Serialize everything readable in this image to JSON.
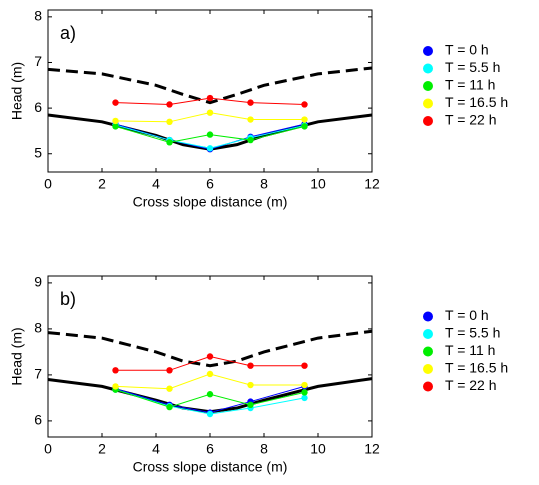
{
  "chart_data": [
    {
      "type": "line",
      "annotation": "a)",
      "xlabel": "Cross slope distance (m)",
      "ylabel": "Head (m)",
      "xlim": [
        0,
        12
      ],
      "xticks": [
        0,
        2,
        4,
        6,
        8,
        10,
        12
      ],
      "ylim": [
        4.6,
        8.15
      ],
      "yticks": [
        5,
        6,
        7,
        8
      ],
      "x": [
        2.5,
        4.5,
        6,
        7.5,
        9.5
      ],
      "series": [
        {
          "name": "T = 0 h",
          "color": "#0000ff",
          "values": [
            5.65,
            5.3,
            5.1,
            5.37,
            5.65
          ]
        },
        {
          "name": "T = 5.5 h",
          "color": "#00ffff",
          "values": [
            5.63,
            5.3,
            5.12,
            5.35,
            5.62
          ]
        },
        {
          "name": "T = 11 h",
          "color": "#00ee00",
          "values": [
            5.6,
            5.25,
            5.42,
            5.3,
            5.6
          ]
        },
        {
          "name": "T = 16.5 h",
          "color": "#ffff00",
          "values": [
            5.72,
            5.7,
            5.9,
            5.75,
            5.75
          ]
        },
        {
          "name": "T = 22 h",
          "color": "#ff0000",
          "values": [
            6.12,
            6.08,
            6.22,
            6.12,
            6.08
          ]
        }
      ],
      "lines": [
        {
          "style": "solid",
          "color": "#000000",
          "x": [
            0,
            2,
            4,
            5,
            6,
            7,
            8,
            10,
            12
          ],
          "values": [
            5.85,
            5.7,
            5.4,
            5.2,
            5.1,
            5.2,
            5.4,
            5.7,
            5.85
          ]
        },
        {
          "style": "dashed",
          "color": "#000000",
          "x": [
            0,
            2,
            4,
            5,
            6,
            7,
            8,
            10,
            12
          ],
          "values": [
            6.85,
            6.75,
            6.5,
            6.3,
            6.12,
            6.3,
            6.5,
            6.75,
            6.88
          ]
        }
      ]
    },
    {
      "type": "line",
      "annotation": "b)",
      "xlabel": "Cross slope distance (m)",
      "ylabel": "Head (m)",
      "xlim": [
        0,
        12
      ],
      "xticks": [
        0,
        2,
        4,
        6,
        8,
        10,
        12
      ],
      "ylim": [
        5.65,
        9.15
      ],
      "yticks": [
        6,
        7,
        8,
        9
      ],
      "x": [
        2.5,
        4.5,
        6,
        7.5,
        9.5
      ],
      "series": [
        {
          "name": "T = 0 h",
          "color": "#0000ff",
          "values": [
            6.7,
            6.35,
            6.18,
            6.42,
            6.75
          ]
        },
        {
          "name": "T = 5.5 h",
          "color": "#00ffff",
          "values": [
            6.68,
            6.32,
            6.15,
            6.28,
            6.5
          ]
        },
        {
          "name": "T = 11 h",
          "color": "#00ee00",
          "values": [
            6.68,
            6.3,
            6.58,
            6.35,
            6.62
          ]
        },
        {
          "name": "T = 16.5 h",
          "color": "#ffff00",
          "values": [
            6.75,
            6.7,
            7.02,
            6.78,
            6.78
          ]
        },
        {
          "name": "T = 22 h",
          "color": "#ff0000",
          "values": [
            7.1,
            7.1,
            7.4,
            7.2,
            7.2
          ]
        }
      ],
      "lines": [
        {
          "style": "solid",
          "color": "#000000",
          "x": [
            0,
            2,
            4,
            5,
            6,
            7,
            8,
            10,
            12
          ],
          "values": [
            6.9,
            6.75,
            6.45,
            6.28,
            6.2,
            6.28,
            6.45,
            6.75,
            6.92
          ]
        },
        {
          "style": "dashed",
          "color": "#000000",
          "x": [
            0,
            2,
            4,
            5,
            6,
            7,
            8,
            10,
            12
          ],
          "values": [
            7.92,
            7.8,
            7.5,
            7.3,
            7.2,
            7.3,
            7.5,
            7.8,
            7.95
          ]
        }
      ]
    }
  ]
}
